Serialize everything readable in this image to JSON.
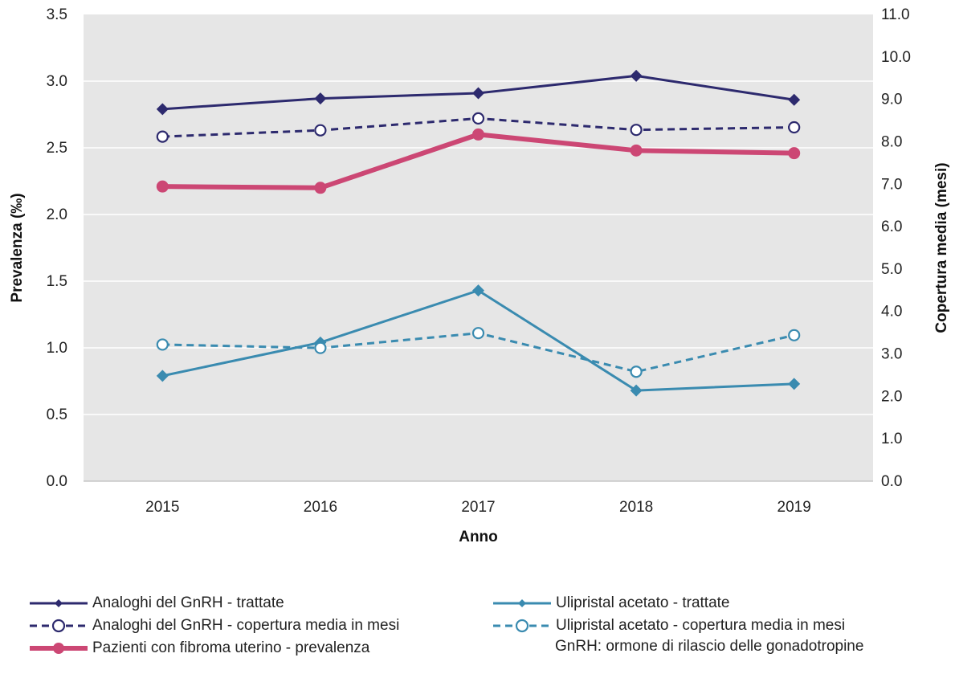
{
  "chart_data": {
    "type": "line",
    "categories": [
      "2015",
      "2016",
      "2017",
      "2018",
      "2019"
    ],
    "xlabel": "Anno",
    "ylabel": "Prevalenza (‰)",
    "y2label": "Copertura media (mesi)",
    "ylim": [
      0,
      3.5
    ],
    "y2lim": [
      0,
      11
    ],
    "yticks": [
      "0.0",
      "0.5",
      "1.0",
      "1.5",
      "2.0",
      "2.5",
      "3.0",
      "3.5"
    ],
    "y2ticks": [
      "0.0",
      "1.0",
      "2.0",
      "3.0",
      "4.0",
      "5.0",
      "6.0",
      "7.0",
      "8.0",
      "9.0",
      "10.0",
      "11.0"
    ],
    "grid": true,
    "series": [
      {
        "name": "Analoghi del GnRH - trattate",
        "axis": "left",
        "color": "#2d2a6e",
        "dash": false,
        "marker": "diamond",
        "values": [
          2.79,
          2.87,
          2.91,
          3.04,
          2.86
        ]
      },
      {
        "name": "Analoghi del GnRH - copertura media in mesi",
        "axis": "right",
        "color": "#2d2a6e",
        "dash": true,
        "marker": "circle",
        "values": [
          8.12,
          8.27,
          8.55,
          8.28,
          8.34
        ]
      },
      {
        "name": "Pazienti con fibroma uterino - prevalenza",
        "axis": "left",
        "color": "#cc4774",
        "dash": false,
        "marker": "circle-filled",
        "values": [
          2.21,
          2.2,
          2.6,
          2.48,
          2.46
        ]
      },
      {
        "name": "Ulipristal acetato - trattate",
        "axis": "left",
        "color": "#3a8bb0",
        "dash": false,
        "marker": "diamond",
        "values": [
          0.79,
          1.04,
          1.43,
          0.68,
          0.73
        ]
      },
      {
        "name": "Ulipristal acetato - copertura media in mesi",
        "axis": "right",
        "color": "#3a8bb0",
        "dash": true,
        "marker": "circle",
        "values": [
          3.22,
          3.14,
          3.49,
          2.58,
          3.44
        ]
      }
    ],
    "footnote": "GnRH: ormone di rilascio delle gonadotropine",
    "legend_position": "bottom"
  }
}
